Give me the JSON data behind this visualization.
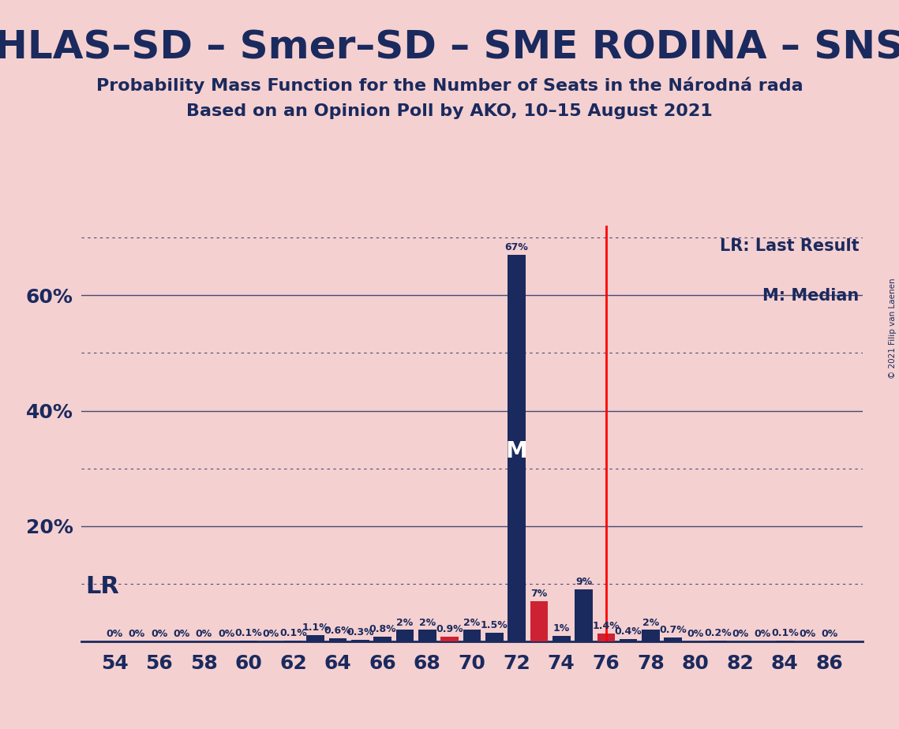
{
  "title": "HLAS–SD – Smer–SD – SME RODINA – SNS",
  "subtitle1": "Probability Mass Function for the Number of Seats in the Národná rada",
  "subtitle2": "Based on an Opinion Poll by AKO, 10–15 August 2021",
  "copyright": "© 2021 Filip van Laenen",
  "background_color": "#f5d0d0",
  "bar_color_main": "#1a2a5e",
  "bar_color_red": "#cc2233",
  "lr_line_x": 76,
  "median_x": 72,
  "seats": [
    54,
    55,
    56,
    57,
    58,
    59,
    60,
    61,
    62,
    63,
    64,
    65,
    66,
    67,
    68,
    69,
    70,
    71,
    72,
    73,
    74,
    75,
    76,
    77,
    78,
    79,
    80,
    81,
    82,
    83,
    84,
    85,
    86
  ],
  "values": [
    0.0,
    0.0,
    0.0,
    0.0,
    0.0,
    0.0,
    0.1,
    0.0,
    0.1,
    1.1,
    0.6,
    0.3,
    0.8,
    2.0,
    2.0,
    0.9,
    2.0,
    1.5,
    67.0,
    7.0,
    1.0,
    9.0,
    1.4,
    0.4,
    2.0,
    0.7,
    0.0,
    0.2,
    0.0,
    0.0,
    0.1,
    0.0,
    0.0
  ],
  "bar_colors": [
    "#1a2a5e",
    "#1a2a5e",
    "#1a2a5e",
    "#1a2a5e",
    "#1a2a5e",
    "#1a2a5e",
    "#1a2a5e",
    "#1a2a5e",
    "#1a2a5e",
    "#1a2a5e",
    "#1a2a5e",
    "#1a2a5e",
    "#1a2a5e",
    "#1a2a5e",
    "#1a2a5e",
    "#cc2233",
    "#1a2a5e",
    "#1a2a5e",
    "#1a2a5e",
    "#cc2233",
    "#1a2a5e",
    "#1a2a5e",
    "#cc2233",
    "#1a2a5e",
    "#1a2a5e",
    "#1a2a5e",
    "#1a2a5e",
    "#1a2a5e",
    "#1a2a5e",
    "#1a2a5e",
    "#1a2a5e",
    "#1a2a5e",
    "#1a2a5e"
  ],
  "ylim": [
    0,
    72
  ],
  "solid_gridlines": [
    20,
    40,
    60
  ],
  "dotted_gridlines": [
    10,
    30,
    50,
    70
  ],
  "xticks": [
    54,
    56,
    58,
    60,
    62,
    64,
    66,
    68,
    70,
    72,
    74,
    76,
    78,
    80,
    82,
    84,
    86
  ],
  "yticks": [
    20,
    40,
    60
  ],
  "legend_text1": "LR: Last Result",
  "legend_text2": "M: Median",
  "lr_label": "LR",
  "median_label": "M",
  "title_fontsize": 36,
  "subtitle_fontsize": 16,
  "tick_fontsize": 18,
  "label_fontsize": 9,
  "legend_fontsize": 15,
  "lr_label_fontsize": 22,
  "median_label_fontsize": 20
}
